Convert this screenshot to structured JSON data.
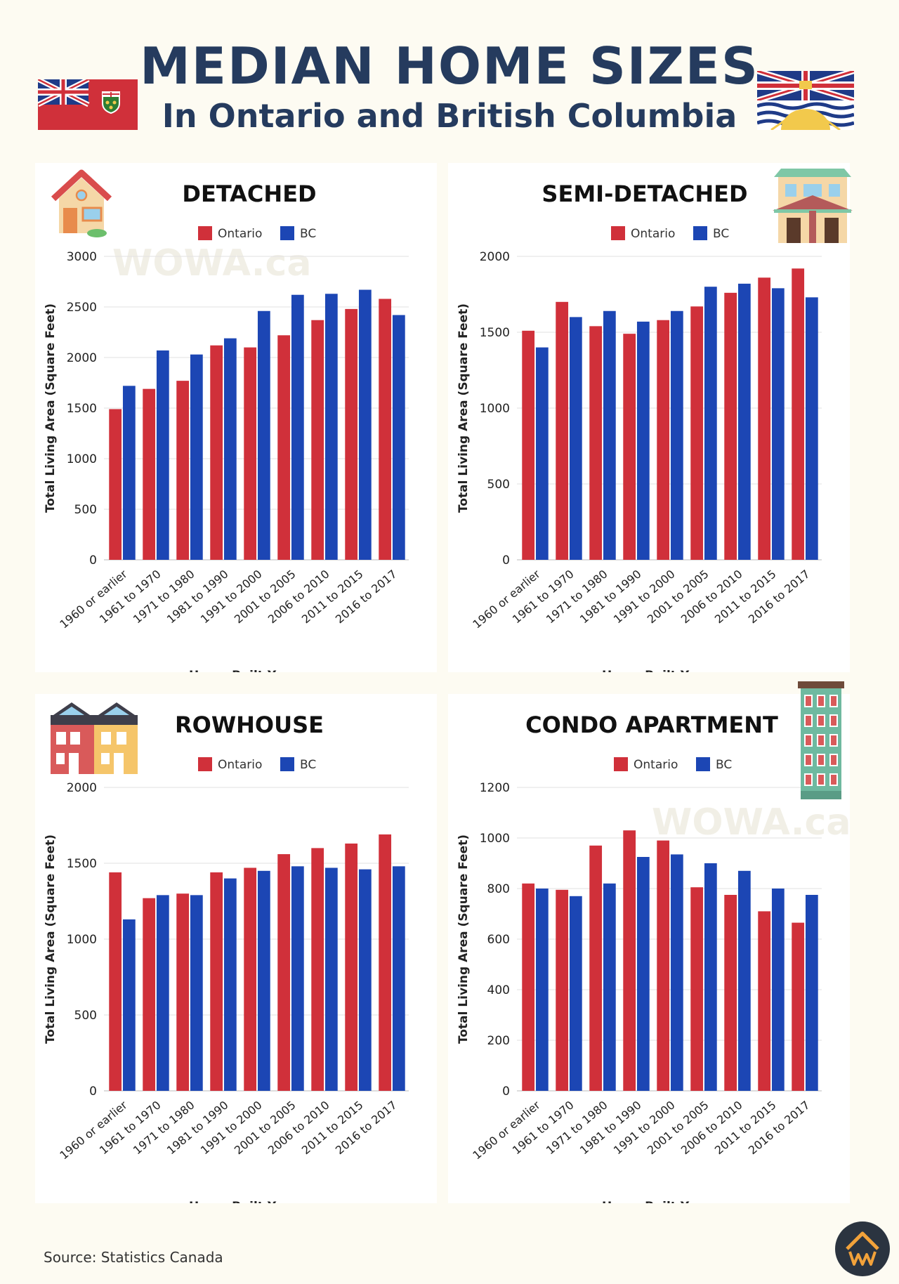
{
  "header": {
    "title": "MEDIAN HOME SIZES",
    "subtitle": "In Ontario and British Columbia"
  },
  "colors": {
    "ontario": "#d0303a",
    "bc": "#1c46b4",
    "title": "#253b5e"
  },
  "watermark": "WOWA.ca",
  "source": "Source: Statistics Canada",
  "chart_data": [
    {
      "type": "bar",
      "title": "DETACHED",
      "icon": "detached-house-icon",
      "categories": [
        "1960 or earlier",
        "1961 to 1970",
        "1971 to 1980",
        "1981 to 1990",
        "1991 to 2000",
        "2001 to 2005",
        "2006 to 2010",
        "2011 to 2015",
        "2016 to 2017"
      ],
      "series": [
        {
          "name": "Ontario",
          "values": [
            1490,
            1690,
            1770,
            2120,
            2100,
            2220,
            2370,
            2480,
            2580
          ]
        },
        {
          "name": "BC",
          "values": [
            1720,
            2070,
            2030,
            2190,
            2460,
            2620,
            2630,
            2670,
            2420
          ]
        }
      ],
      "ylim": [
        0,
        3000
      ],
      "yticks": [
        0,
        500,
        1000,
        1500,
        2000,
        2500,
        3000
      ],
      "xlabel": "Home Built Year",
      "ylabel": "Total Living Area (Square Feet)",
      "legend": "top-center",
      "grid": true
    },
    {
      "type": "bar",
      "title": "SEMI-DETACHED",
      "icon": "semi-detached-house-icon",
      "categories": [
        "1960 or earlier",
        "1961 to 1970",
        "1971 to 1980",
        "1981 to 1990",
        "1991 to 2000",
        "2001 to 2005",
        "2006 to 2010",
        "2011 to 2015",
        "2016 to 2017"
      ],
      "series": [
        {
          "name": "Ontario",
          "values": [
            1510,
            1700,
            1540,
            1490,
            1580,
            1670,
            1760,
            1860,
            1920
          ]
        },
        {
          "name": "BC",
          "values": [
            1400,
            1600,
            1640,
            1570,
            1640,
            1800,
            1820,
            1790,
            1730
          ]
        }
      ],
      "ylim": [
        0,
        2000
      ],
      "yticks": [
        0,
        500,
        1000,
        1500,
        2000
      ],
      "xlabel": "Home Built Year",
      "ylabel": "Total Living Area (Square Feet)",
      "legend": "top-center",
      "grid": true
    },
    {
      "type": "bar",
      "title": "ROWHOUSE",
      "icon": "rowhouse-icon",
      "categories": [
        "1960 or earlier",
        "1961 to 1970",
        "1971 to 1980",
        "1981 to 1990",
        "1991 to 2000",
        "2001 to 2005",
        "2006 to 2010",
        "2011 to 2015",
        "2016 to 2017"
      ],
      "series": [
        {
          "name": "Ontario",
          "values": [
            1440,
            1270,
            1300,
            1440,
            1470,
            1560,
            1600,
            1630,
            1690
          ]
        },
        {
          "name": "BC",
          "values": [
            1130,
            1290,
            1290,
            1400,
            1450,
            1480,
            1470,
            1460,
            1480
          ]
        }
      ],
      "ylim": [
        0,
        2000
      ],
      "yticks": [
        0,
        500,
        1000,
        1500,
        2000
      ],
      "xlabel": "Home Built Year",
      "ylabel": "Total Living Area (Square Feet)",
      "legend": "top-center",
      "grid": true
    },
    {
      "type": "bar",
      "title": "CONDO APARTMENT",
      "icon": "condo-building-icon",
      "categories": [
        "1960 or earlier",
        "1961 to 1970",
        "1971 to 1980",
        "1981 to 1990",
        "1991 to 2000",
        "2001 to 2005",
        "2006 to 2010",
        "2011 to 2015",
        "2016 to 2017"
      ],
      "series": [
        {
          "name": "Ontario",
          "values": [
            820,
            795,
            970,
            1030,
            990,
            805,
            775,
            710,
            665
          ]
        },
        {
          "name": "BC",
          "values": [
            800,
            770,
            820,
            925,
            935,
            900,
            870,
            800,
            775
          ]
        }
      ],
      "ylim": [
        0,
        1200
      ],
      "yticks": [
        0,
        200,
        400,
        600,
        800,
        1000,
        1200
      ],
      "xlabel": "Home Built Year",
      "ylabel": "Total Living Area (Square Feet)",
      "legend": "top-center",
      "grid": true
    }
  ]
}
